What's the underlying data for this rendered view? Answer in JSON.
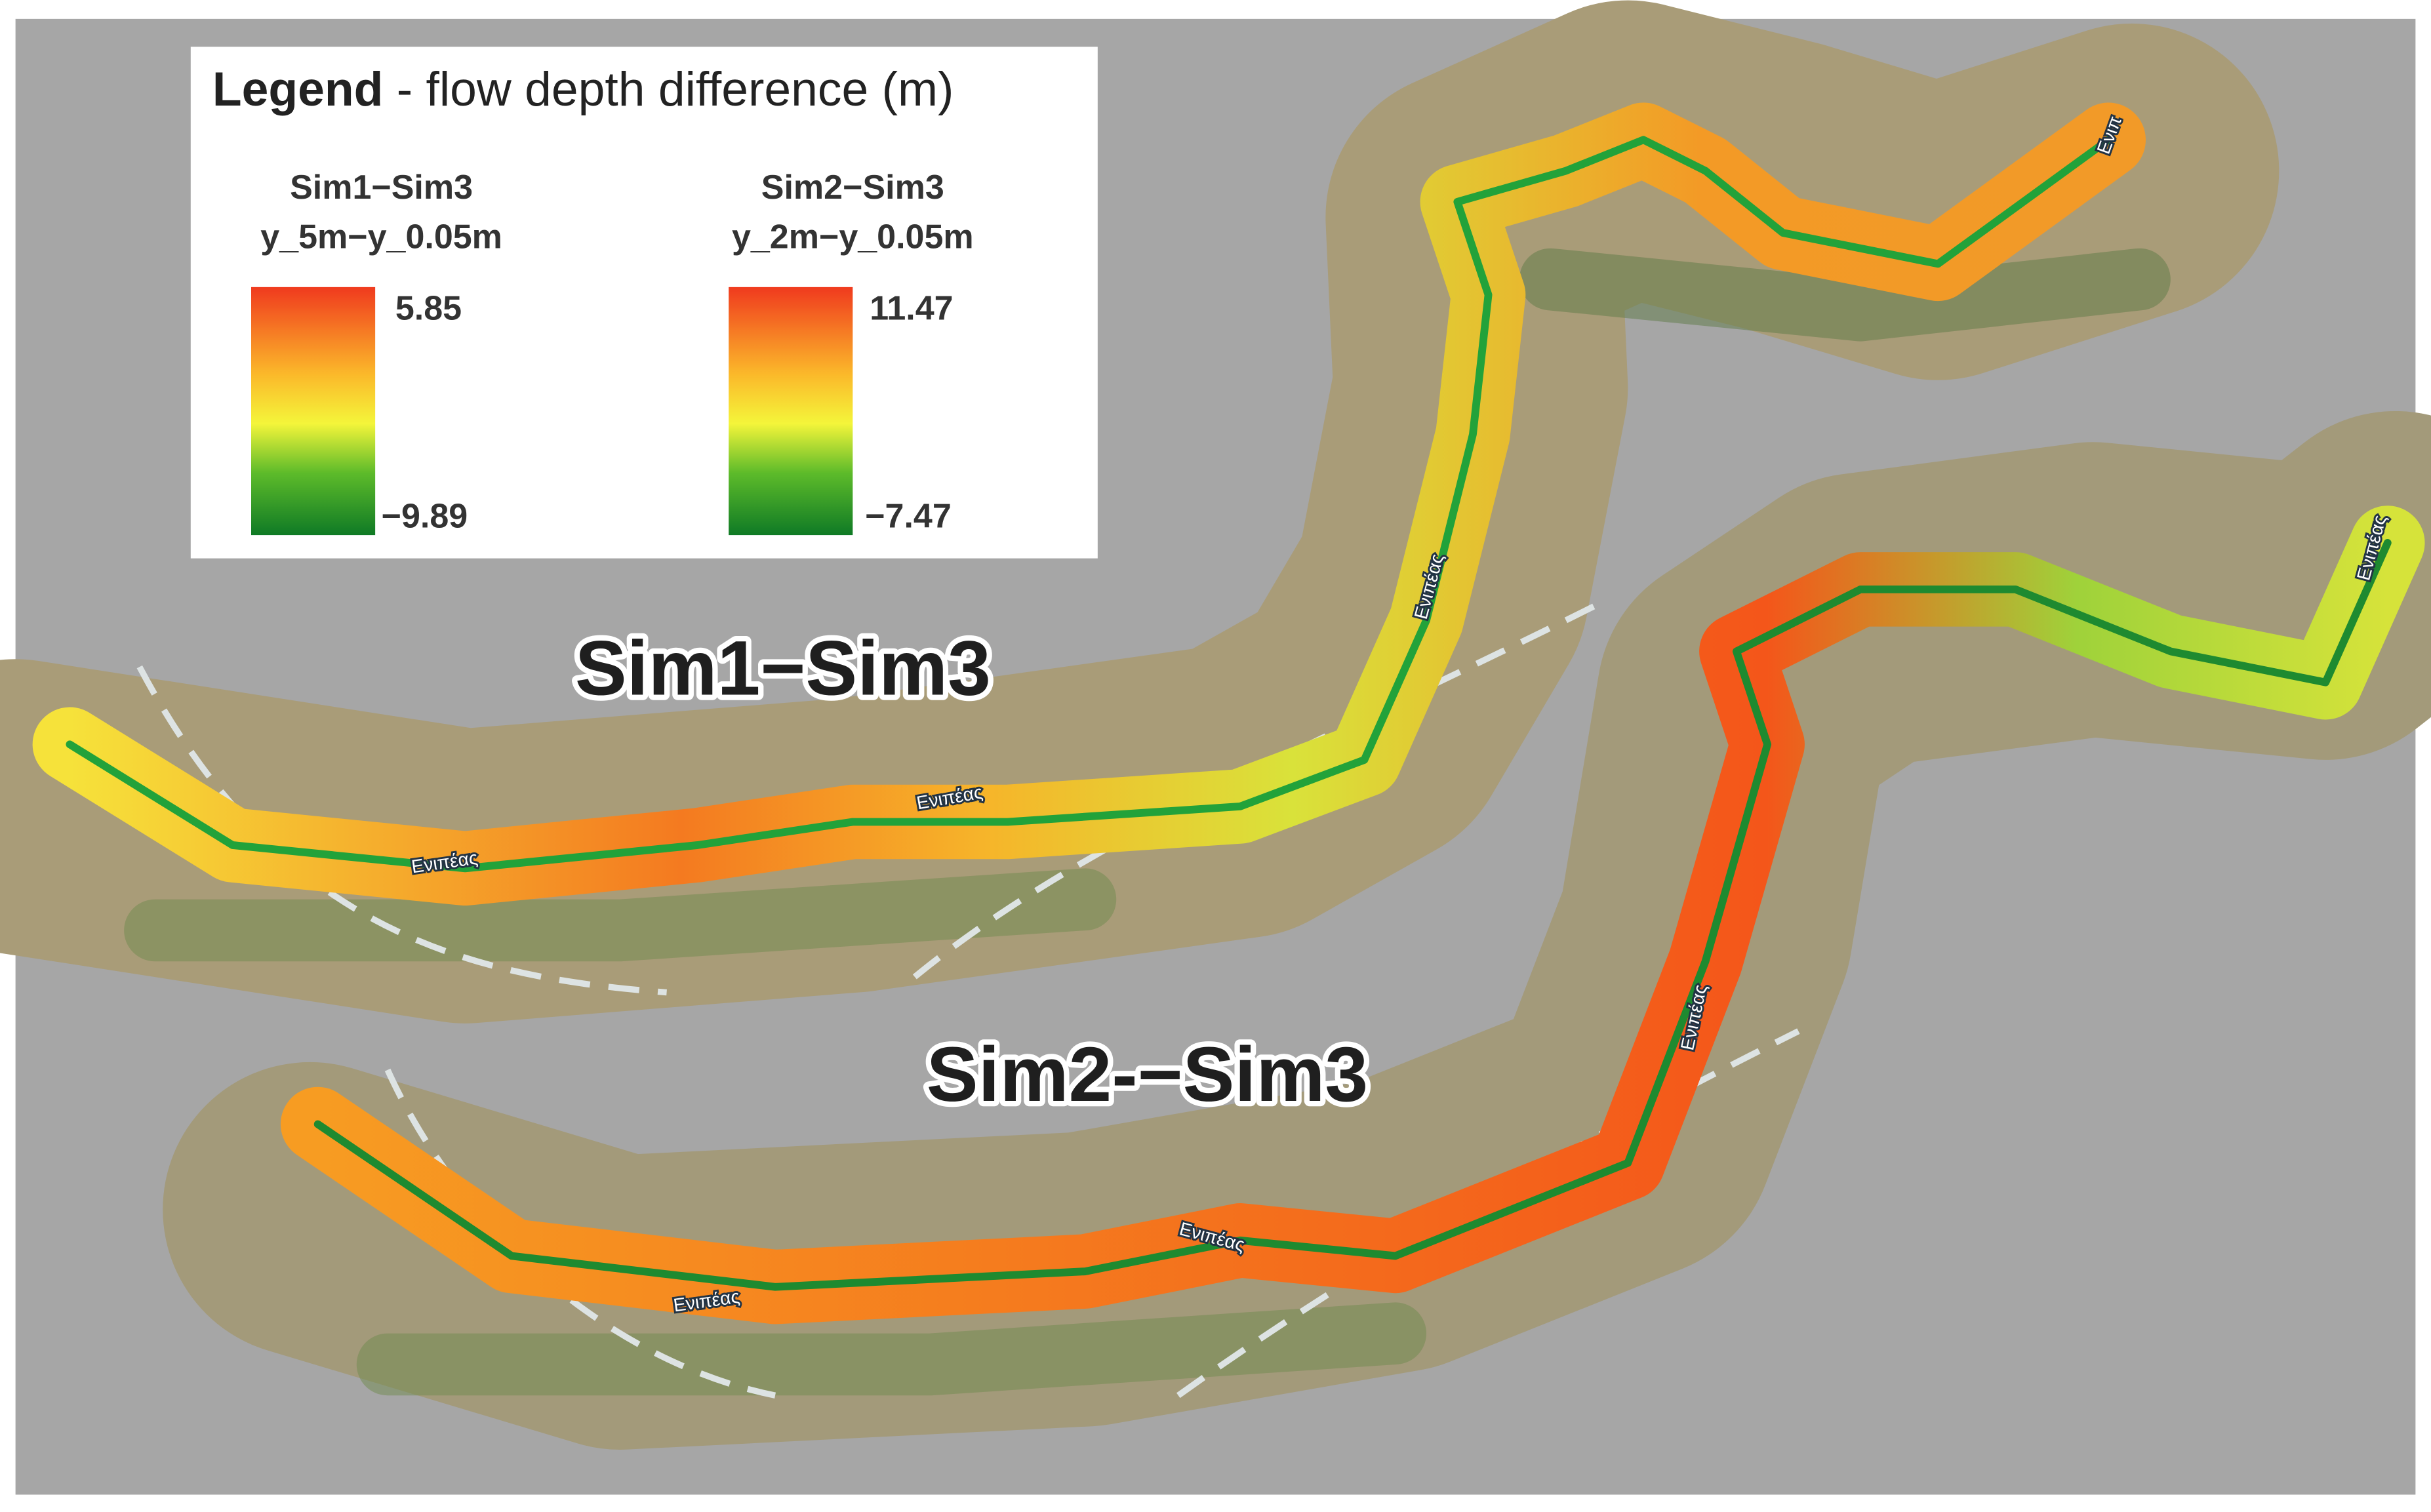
{
  "legend": {
    "title": "Legend",
    "subtitle": " - flow depth difference (m)",
    "scales": [
      {
        "name": "Sim1−Sim3",
        "expression": "y_5m−y_0.05m",
        "max": "5.85",
        "min": "−9.89"
      },
      {
        "name": "Sim2−Sim3",
        "expression": "y_2m−y_0.05m",
        "max": "11.47",
        "min": "−7.47"
      }
    ]
  },
  "map_labels": [
    "Sim1−Sim3",
    "Sim2-−Sim3"
  ],
  "river_labels": [
    "Ενιπέας",
    "Ενιπέας",
    "Ενιπέας",
    "Ενιπ",
    "Ενιπέας",
    "Ενιπέας",
    "Ενιπέας",
    "Ενιπέας"
  ]
}
